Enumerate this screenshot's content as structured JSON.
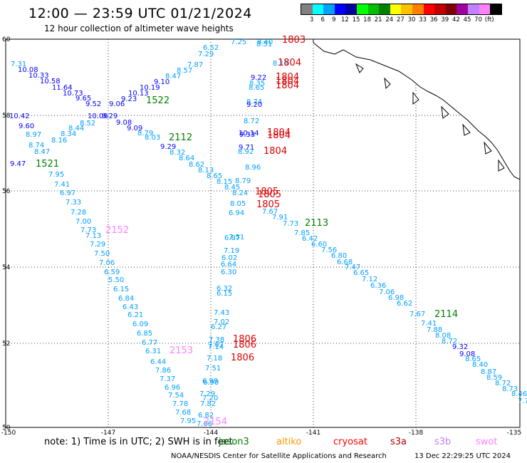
{
  "header": {
    "title": "12:00 — 23:59 UTC 01/21/2024",
    "subtitle": "12 hour collection of altimeter wave heights"
  },
  "legend": {
    "colors": [
      "#808080",
      "#00ffff",
      "#00a0ff",
      "#0000ff",
      "#0000a0",
      "#00ff00",
      "#00c000",
      "#008000",
      "#ffff00",
      "#ffc000",
      "#ff8000",
      "#ff0000",
      "#c00000",
      "#800000",
      "#a000a0",
      "#c080ff",
      "#ff80ff",
      "#000000"
    ],
    "labels": [
      "3",
      "6",
      "9",
      "12",
      "15",
      "18",
      "21",
      "24",
      "27",
      "30",
      "33",
      "36",
      "39",
      "42",
      "45",
      "70",
      "(ft)"
    ]
  },
  "map": {
    "lat_labels": [
      "60",
      "58",
      "56",
      "54",
      "52",
      "50"
    ],
    "lon_labels": [
      "-150",
      "-147",
      "-144",
      "-141",
      "-138",
      "-135"
    ],
    "passes": [
      {
        "id": "1522",
        "color": "#008000"
      },
      {
        "id": "1521",
        "color": "#008000"
      },
      {
        "id": "2112",
        "color": "#008000"
      },
      {
        "id": "2113",
        "color": "#008000"
      },
      {
        "id": "2114",
        "color": "#008000"
      },
      {
        "id": "2152",
        "color": "#ff80ff"
      },
      {
        "id": "2153",
        "color": "#ff80ff"
      },
      {
        "id": "2154",
        "color": "#ff80ff"
      },
      {
        "id": "1803",
        "color": "#dd0000"
      },
      {
        "id": "1804",
        "color": "#dd0000"
      },
      {
        "id": "1805",
        "color": "#dd0000"
      },
      {
        "id": "1806",
        "color": "#dd0000"
      }
    ],
    "values": [
      [
        "7.31",
        "#00a0ff"
      ],
      [
        "10.08",
        "#0000ff"
      ],
      [
        "10.33",
        "#0000ff"
      ],
      [
        "10.58",
        "#0000ff"
      ],
      [
        "11.64",
        "#0000ff"
      ],
      [
        "10.73",
        "#0000ff"
      ],
      [
        "9.65",
        "#0000ff"
      ],
      [
        "9.52",
        "#0000ff"
      ],
      [
        "9.06",
        "#0000ff"
      ],
      [
        "9.23",
        "#0000ff"
      ],
      [
        "10.13",
        "#0000ff"
      ],
      [
        "10.19",
        "#0000ff"
      ],
      [
        "9.10",
        "#0000ff"
      ],
      [
        "8.47",
        "#00a0ff"
      ],
      [
        "8.57",
        "#00a0ff"
      ],
      [
        "7.87",
        "#00a0ff"
      ],
      [
        "7.29",
        "#00a0ff"
      ],
      [
        "6.52",
        "#00a0ff"
      ],
      [
        "7.25",
        "#00a0ff"
      ],
      [
        "8.40",
        "#00a0ff"
      ],
      [
        "8.51",
        "#00a0ff"
      ],
      [
        "10.42",
        "#0000ff"
      ],
      [
        "9.60",
        "#0000ff"
      ],
      [
        "10.09",
        "#0000ff"
      ],
      [
        "9.29",
        "#0000ff"
      ],
      [
        "9.08",
        "#0000ff"
      ],
      [
        "9.09",
        "#0000ff"
      ],
      [
        "8.79",
        "#00a0ff"
      ],
      [
        "8.03",
        "#00a0ff"
      ],
      [
        "8.52",
        "#00a0ff"
      ],
      [
        "8.44",
        "#00a0ff"
      ],
      [
        "8.34",
        "#00a0ff"
      ],
      [
        "8.97",
        "#00a0ff"
      ],
      [
        "8.16",
        "#00a0ff"
      ],
      [
        "8.74",
        "#00a0ff"
      ],
      [
        "8.47",
        "#00a0ff"
      ],
      [
        "9.47",
        "#0000ff"
      ],
      [
        "7.95",
        "#00a0ff"
      ],
      [
        "7.41",
        "#00a0ff"
      ],
      [
        "6.97",
        "#00a0ff"
      ],
      [
        "7.33",
        "#00a0ff"
      ],
      [
        "7.28",
        "#00a0ff"
      ],
      [
        "7.00",
        "#00a0ff"
      ],
      [
        "7.73",
        "#00a0ff"
      ],
      [
        "7.13",
        "#00a0ff"
      ],
      [
        "7.29",
        "#00a0ff"
      ],
      [
        "7.50",
        "#00a0ff"
      ],
      [
        "7.06",
        "#00a0ff"
      ],
      [
        "6.59",
        "#00a0ff"
      ],
      [
        "5.50",
        "#00a0ff"
      ],
      [
        "6.15",
        "#00a0ff"
      ],
      [
        "6.84",
        "#00a0ff"
      ],
      [
        "6.43",
        "#00a0ff"
      ],
      [
        "6.21",
        "#00a0ff"
      ],
      [
        "6.09",
        "#00a0ff"
      ],
      [
        "6.85",
        "#00a0ff"
      ],
      [
        "6.77",
        "#00a0ff"
      ],
      [
        "6.31",
        "#00a0ff"
      ],
      [
        "6.44",
        "#00a0ff"
      ],
      [
        "7.86",
        "#00a0ff"
      ],
      [
        "7.37",
        "#00a0ff"
      ],
      [
        "6.96",
        "#00a0ff"
      ],
      [
        "7.54",
        "#00a0ff"
      ],
      [
        "7.78",
        "#00a0ff"
      ],
      [
        "7.68",
        "#00a0ff"
      ],
      [
        "7.95",
        "#00a0ff"
      ],
      [
        "9.29",
        "#0000ff"
      ],
      [
        "8.32",
        "#00a0ff"
      ],
      [
        "8.64",
        "#00a0ff"
      ],
      [
        "8.62",
        "#00a0ff"
      ],
      [
        "8.13",
        "#00a0ff"
      ],
      [
        "8.65",
        "#00a0ff"
      ],
      [
        "8.15",
        "#00a0ff"
      ],
      [
        "8.79",
        "#00a0ff"
      ],
      [
        "8.45",
        "#00a0ff"
      ],
      [
        "8.24",
        "#00a0ff"
      ],
      [
        "8.05",
        "#00a0ff"
      ],
      [
        "6.94",
        "#00a0ff"
      ],
      [
        "7.51",
        "#00a0ff"
      ],
      [
        "7.67",
        "#00a0ff"
      ],
      [
        "7.91",
        "#00a0ff"
      ],
      [
        "7.73",
        "#00a0ff"
      ],
      [
        "7.85",
        "#00a0ff"
      ],
      [
        "6.42",
        "#00a0ff"
      ],
      [
        "6.60",
        "#00a0ff"
      ],
      [
        "7.56",
        "#00a0ff"
      ],
      [
        "6.80",
        "#00a0ff"
      ],
      [
        "6.68",
        "#00a0ff"
      ],
      [
        "7.47",
        "#00a0ff"
      ],
      [
        "6.65",
        "#00a0ff"
      ],
      [
        "7.12",
        "#00a0ff"
      ],
      [
        "6.36",
        "#00a0ff"
      ],
      [
        "7.06",
        "#00a0ff"
      ],
      [
        "6.98",
        "#00a0ff"
      ],
      [
        "6.62",
        "#00a0ff"
      ],
      [
        "7.67",
        "#00a0ff"
      ],
      [
        "7.41",
        "#00a0ff"
      ],
      [
        "7.88",
        "#00a0ff"
      ],
      [
        "8.08",
        "#00a0ff"
      ],
      [
        "8.72",
        "#00a0ff"
      ],
      [
        "9.32",
        "#0000ff"
      ],
      [
        "9.08",
        "#0000ff"
      ],
      [
        "8.65",
        "#00a0ff"
      ],
      [
        "8.40",
        "#00a0ff"
      ],
      [
        "8.87",
        "#00a0ff"
      ],
      [
        "8.59",
        "#00a0ff"
      ],
      [
        "8.72",
        "#00a0ff"
      ],
      [
        "8.73",
        "#00a0ff"
      ],
      [
        "8.46",
        "#00a0ff"
      ],
      [
        "7.7",
        "#00a0ff"
      ],
      [
        "8.19",
        "#00a0ff"
      ],
      [
        "9.22",
        "#0000ff"
      ],
      [
        "8.35",
        "#00a0ff"
      ],
      [
        "8.65",
        "#00a0ff"
      ],
      [
        "8.74",
        "#00a0ff"
      ],
      [
        "9.20",
        "#0000ff"
      ],
      [
        "8.72",
        "#00a0ff"
      ],
      [
        "10.14",
        "#0000ff"
      ],
      [
        "9.33",
        "#0000ff"
      ],
      [
        "9.71",
        "#0000ff"
      ],
      [
        "8.92",
        "#00a0ff"
      ],
      [
        "8.96",
        "#00a0ff"
      ],
      [
        "6.87",
        "#00a0ff"
      ],
      [
        "7.19",
        "#00a0ff"
      ],
      [
        "6.02",
        "#00a0ff"
      ],
      [
        "6.64",
        "#00a0ff"
      ],
      [
        "6.30",
        "#00a0ff"
      ],
      [
        "6.32",
        "#00a0ff"
      ],
      [
        "6.15",
        "#00a0ff"
      ],
      [
        "7.43",
        "#00a0ff"
      ],
      [
        "7.02",
        "#00a0ff"
      ],
      [
        "6.27",
        "#00a0ff"
      ],
      [
        "7.38",
        "#00a0ff"
      ],
      [
        "7.07",
        "#00a0ff"
      ],
      [
        "7.14",
        "#00a0ff"
      ],
      [
        "7.18",
        "#00a0ff"
      ],
      [
        "7.51",
        "#00a0ff"
      ],
      [
        "6.99",
        "#00a0ff"
      ],
      [
        "6.90",
        "#00a0ff"
      ],
      [
        "7.29",
        "#00a0ff"
      ],
      [
        "7.20",
        "#00a0ff"
      ],
      [
        "7.82",
        "#00a0ff"
      ],
      [
        "6.82",
        "#00a0ff"
      ],
      [
        "7.06",
        "#00a0ff"
      ]
    ]
  },
  "footer": {
    "note": "note:  1) Time is in UTC; 2) SWH is in feet",
    "satellites": [
      {
        "name": "jason3",
        "color": "#008000"
      },
      {
        "name": "altiko",
        "color": "#ff9900"
      },
      {
        "name": "cryosat",
        "color": "#ff0000"
      },
      {
        "name": "s3a",
        "color": "#aa0000"
      },
      {
        "name": "s3b",
        "color": "#c080ff"
      },
      {
        "name": "swot",
        "color": "#ff80ff"
      }
    ],
    "credit": "NOAA/NESDIS Center for Satellite Applications and Research",
    "timestamp": "13 Dec 22:29:25 UTC 2024"
  }
}
